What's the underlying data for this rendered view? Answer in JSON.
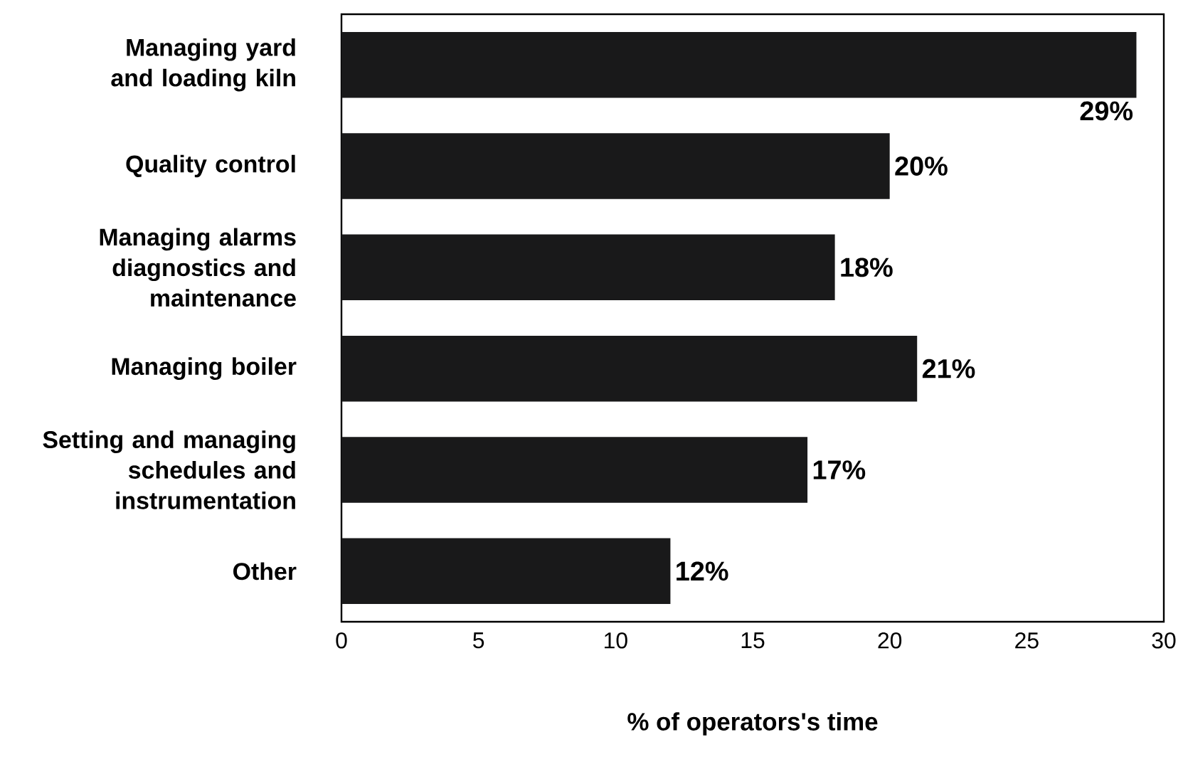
{
  "chart_data": {
    "type": "bar",
    "orientation": "horizontal",
    "categories": [
      "Managing yard and loading kiln",
      "Quality control",
      "Managing alarms diagnostics and maintenance",
      "Managing boiler",
      "Setting and managing schedules and instrumentation",
      "Other"
    ],
    "values": [
      29,
      20,
      18,
      21,
      17,
      12
    ],
    "value_labels": [
      "29%",
      "20%",
      "18%",
      "21%",
      "17%",
      "12%"
    ],
    "color": "#19191a",
    "xlabel": "% of operators's time",
    "xlim": [
      0,
      30
    ],
    "xticks": [
      0,
      5,
      10,
      15,
      20,
      25,
      30
    ]
  }
}
